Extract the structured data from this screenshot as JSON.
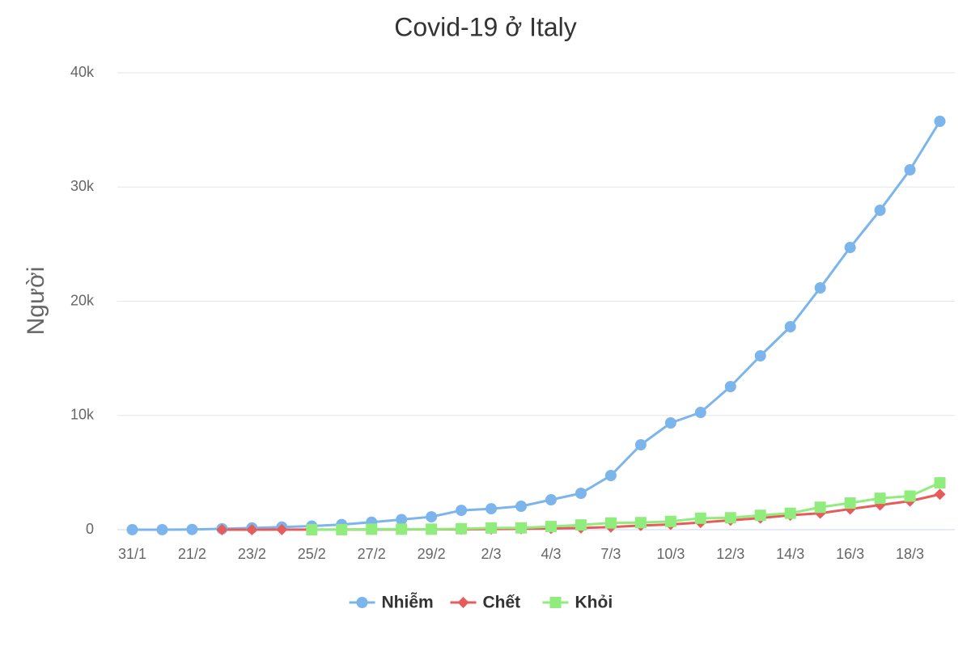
{
  "chart_data": {
    "type": "line",
    "title": "Covid-19 ở Italy",
    "y_label": "Người",
    "categories": [
      "31/1",
      null,
      "21/2",
      null,
      "23/2",
      null,
      "25/2",
      null,
      "27/2",
      null,
      "29/2",
      null,
      "2/3",
      null,
      "4/3",
      null,
      "7/3",
      null,
      "10/3",
      null,
      "12/3",
      null,
      "14/3",
      null,
      "16/3",
      null,
      "18/3",
      null
    ],
    "series": [
      {
        "name": "Nhiễm",
        "color": "#7cb5ec",
        "marker": "circle",
        "values": [
          3,
          3,
          20,
          79,
          150,
          229,
          322,
          453,
          655,
          888,
          1128,
          1694,
          1835,
          2053,
          2619,
          3186,
          4743,
          7434,
          9345,
          10266,
          12531,
          15221,
          17770,
          21168,
          24707,
          27965,
          31504,
          35752
        ]
      },
      {
        "name": "Chết",
        "color": "#e85b5b",
        "marker": "diamond",
        "values": [
          null,
          null,
          null,
          1,
          3,
          7,
          10,
          12,
          17,
          21,
          29,
          34,
          52,
          79,
          107,
          148,
          233,
          366,
          463,
          631,
          827,
          1016,
          1266,
          1441,
          1809,
          2158,
          2503,
          3100
        ]
      },
      {
        "name": "Khỏi",
        "color": "#90ed7d",
        "marker": "square",
        "values": [
          null,
          null,
          null,
          null,
          null,
          null,
          1,
          3,
          45,
          46,
          46,
          83,
          149,
          160,
          276,
          414,
          589,
          622,
          724,
          1004,
          1045,
          1258,
          1439,
          1966,
          2335,
          2749,
          2941,
          4100
        ]
      }
    ],
    "ylim": [
      0,
      40000
    ],
    "yticks": [
      0,
      {
        "value": 10000,
        "label": "10k"
      },
      {
        "value": 20000,
        "label": "20k"
      },
      {
        "value": 30000,
        "label": "30k"
      },
      {
        "value": 40000,
        "label": "40k"
      }
    ],
    "grid": true,
    "legend": "bottom"
  }
}
